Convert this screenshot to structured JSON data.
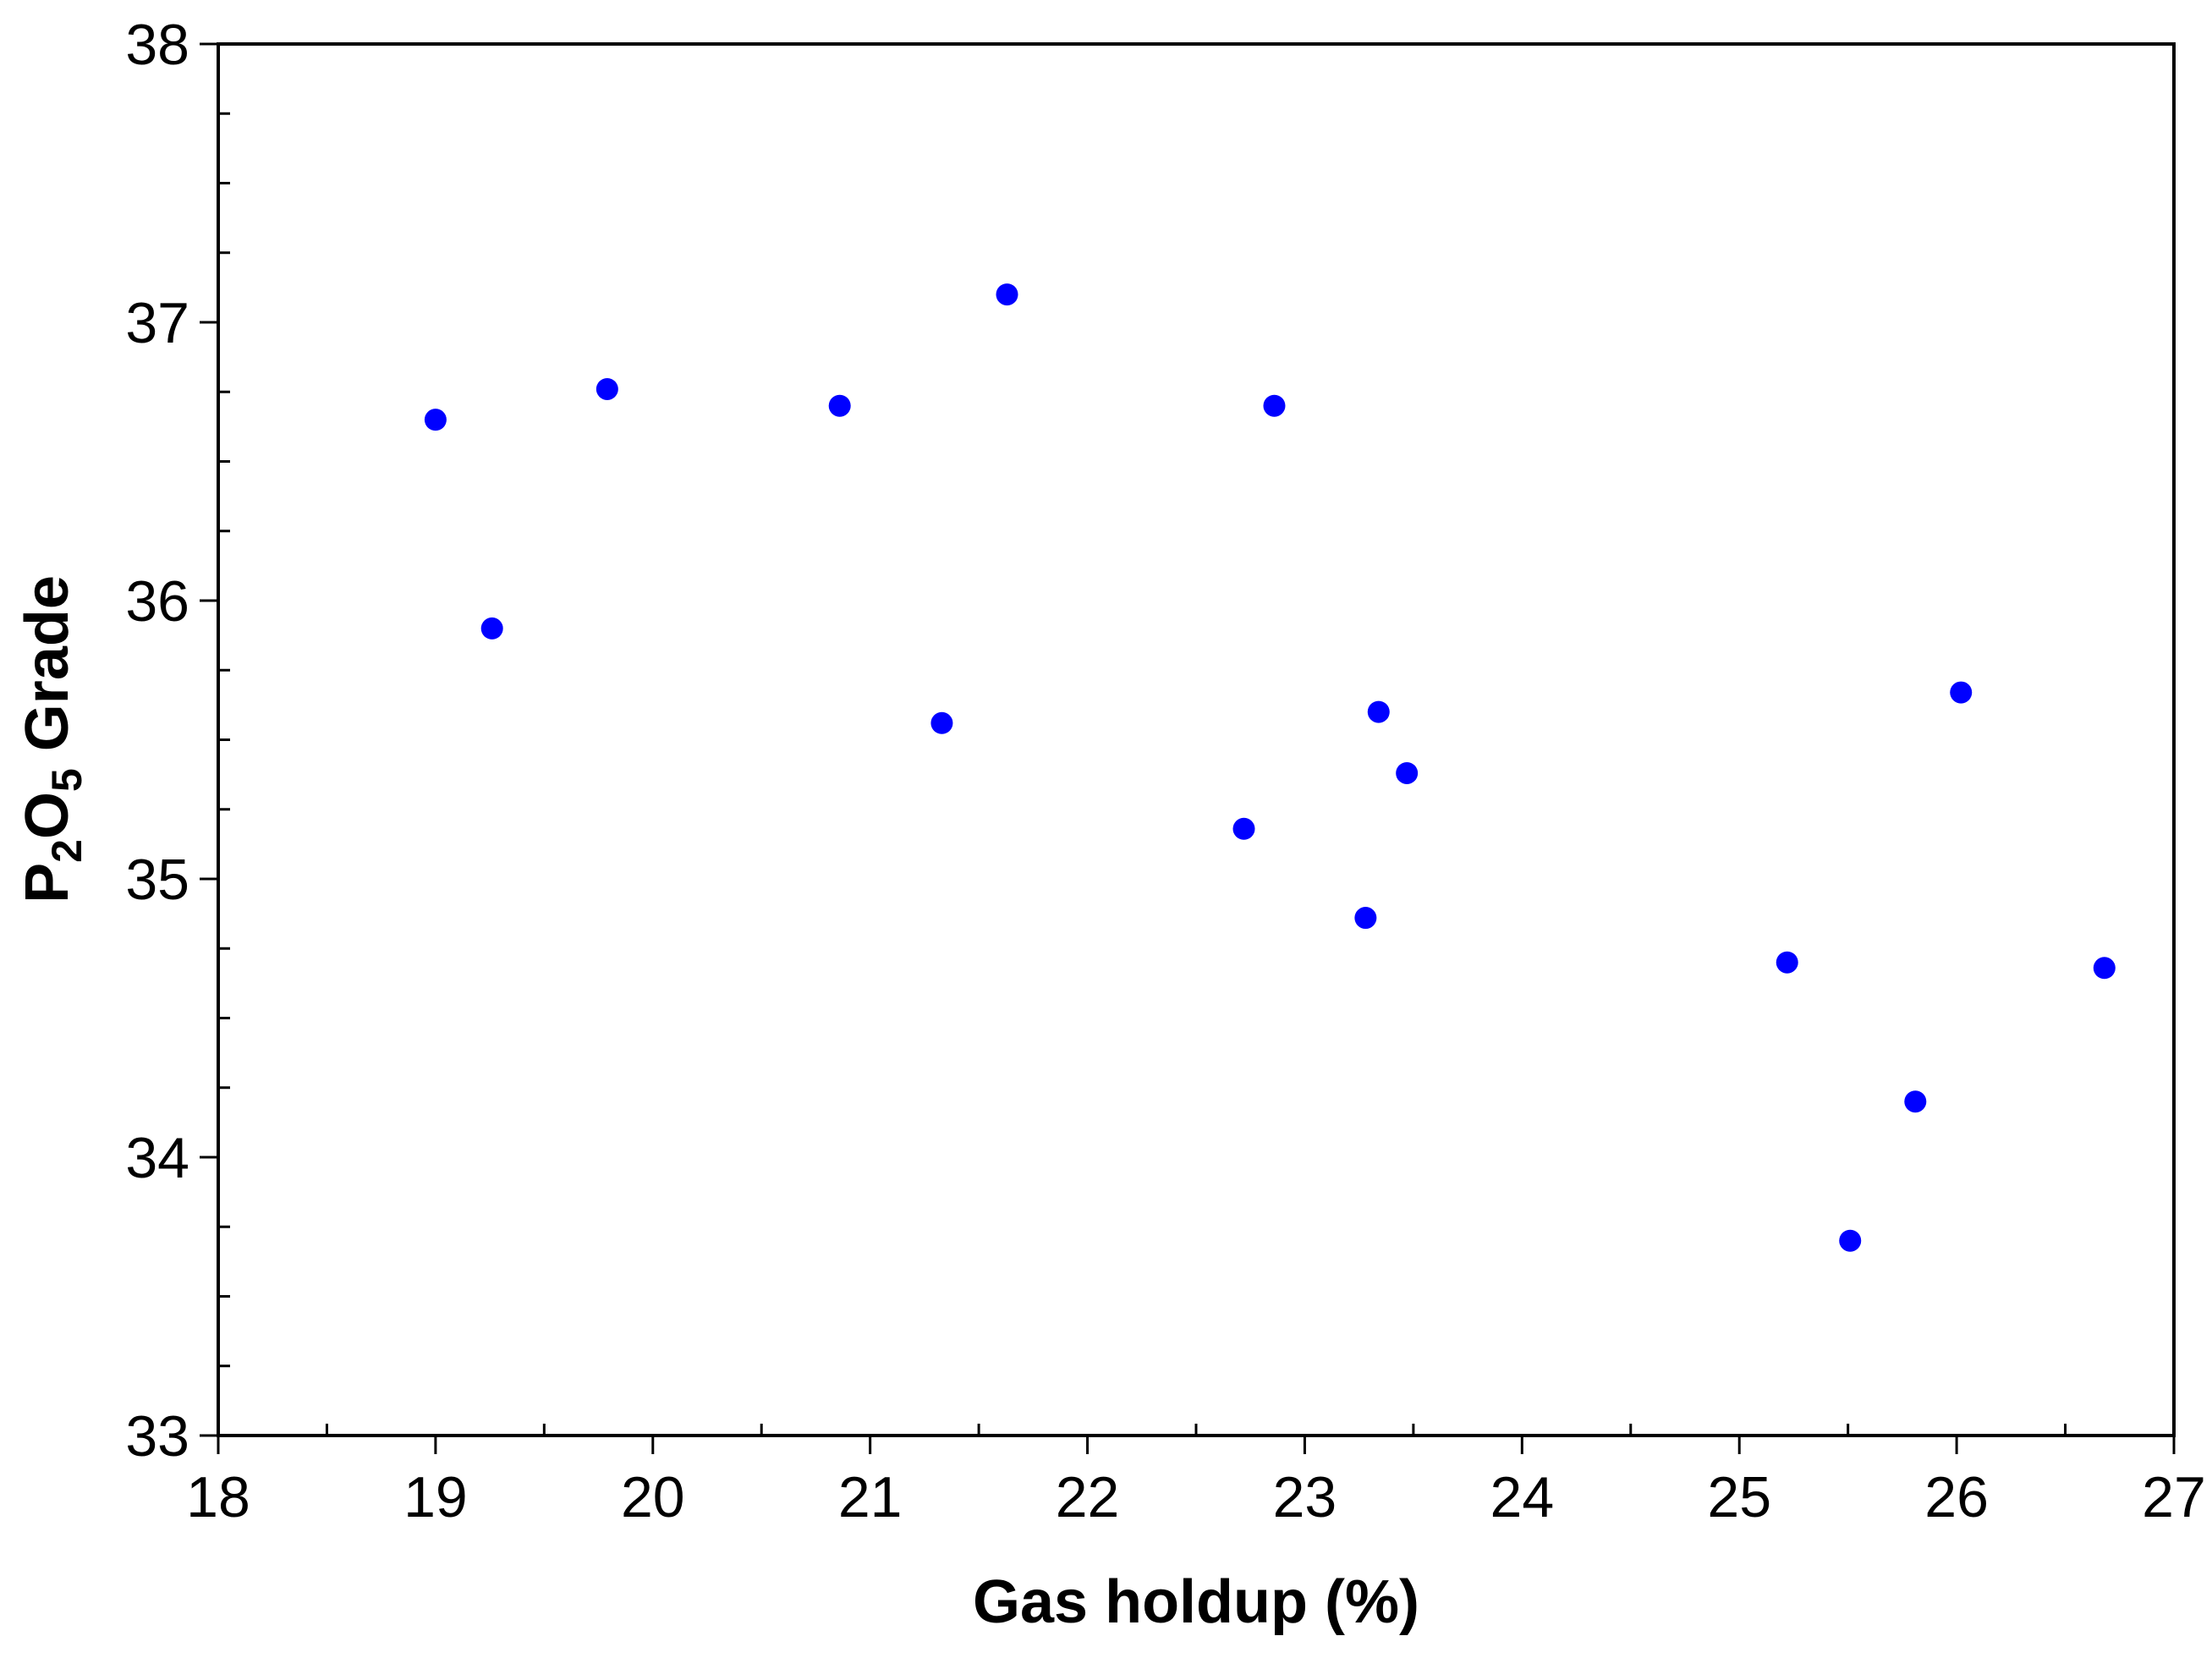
{
  "chart_data": {
    "type": "scatter",
    "xlabel": "Gas holdup (%)",
    "ylabel": {
      "parts": [
        {
          "text": "P",
          "sub": false
        },
        {
          "text": "2",
          "sub": true
        },
        {
          "text": "O",
          "sub": false
        },
        {
          "text": "5",
          "sub": true
        },
        {
          "text": " Grade",
          "sub": false
        }
      ]
    },
    "xlim": [
      18,
      27
    ],
    "ylim": [
      33,
      38
    ],
    "x_ticks": [
      18,
      19,
      20,
      21,
      22,
      23,
      24,
      25,
      26,
      27
    ],
    "y_ticks": [
      33,
      34,
      35,
      36,
      37,
      38
    ],
    "grid": false,
    "marker_color": "#0000ff",
    "points": [
      {
        "x": 19.0,
        "y": 36.65
      },
      {
        "x": 19.26,
        "y": 35.9
      },
      {
        "x": 19.79,
        "y": 36.76
      },
      {
        "x": 20.86,
        "y": 36.7
      },
      {
        "x": 21.33,
        "y": 35.56
      },
      {
        "x": 21.63,
        "y": 37.1
      },
      {
        "x": 22.72,
        "y": 35.18
      },
      {
        "x": 22.86,
        "y": 36.7
      },
      {
        "x": 23.28,
        "y": 34.86
      },
      {
        "x": 23.34,
        "y": 35.6
      },
      {
        "x": 23.47,
        "y": 35.38
      },
      {
        "x": 25.22,
        "y": 34.7
      },
      {
        "x": 25.51,
        "y": 33.7
      },
      {
        "x": 25.81,
        "y": 34.2
      },
      {
        "x": 26.02,
        "y": 35.67
      },
      {
        "x": 26.68,
        "y": 34.68
      }
    ]
  }
}
